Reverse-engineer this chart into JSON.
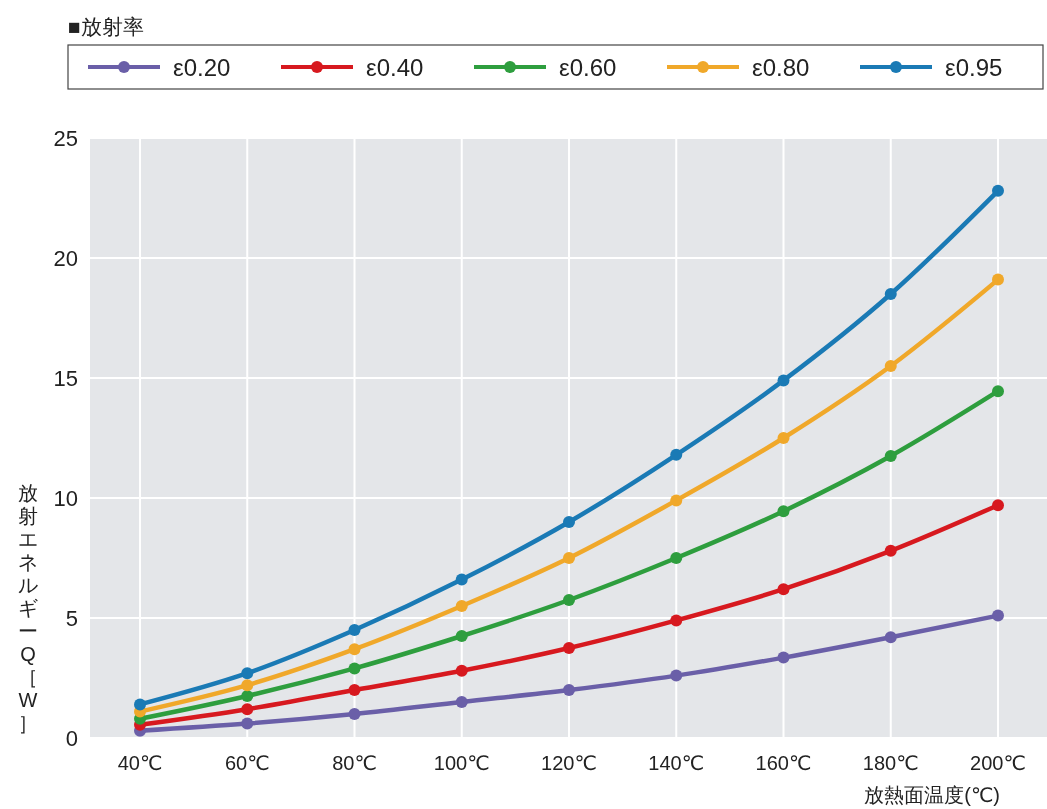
{
  "chart_data": {
    "type": "line",
    "legend_title": "■放射率",
    "xlabel": "放熱面温度(℃)",
    "ylabel": "放射エネルギーQ［W］",
    "categories": [
      "40℃",
      "60℃",
      "80℃",
      "100℃",
      "120℃",
      "140℃",
      "160℃",
      "180℃",
      "200℃"
    ],
    "ylim": [
      0,
      25
    ],
    "yticks": [
      0,
      5,
      10,
      15,
      20,
      25
    ],
    "grid": true,
    "legend": "top",
    "marker": "circle",
    "line_style": "solid",
    "series": [
      {
        "name": "ε0.20",
        "color": "#6a5fa8",
        "values": [
          0.3,
          0.6,
          1.0,
          1.5,
          2.0,
          2.6,
          3.35,
          4.2,
          5.1
        ]
      },
      {
        "name": "ε0.40",
        "color": "#d7191f",
        "values": [
          0.55,
          1.2,
          2.0,
          2.8,
          3.75,
          4.9,
          6.2,
          7.8,
          9.7
        ]
      },
      {
        "name": "ε0.60",
        "color": "#2e9e3e",
        "values": [
          0.8,
          1.75,
          2.9,
          4.25,
          5.75,
          7.5,
          9.45,
          11.75,
          14.45
        ]
      },
      {
        "name": "ε0.80",
        "color": "#f0a82a",
        "values": [
          1.1,
          2.2,
          3.7,
          5.5,
          7.5,
          9.9,
          12.5,
          15.5,
          19.1
        ]
      },
      {
        "name": "ε0.95",
        "color": "#1a7ab5",
        "values": [
          1.4,
          2.7,
          4.5,
          6.6,
          9.0,
          11.8,
          14.9,
          18.5,
          22.8
        ]
      }
    ]
  }
}
